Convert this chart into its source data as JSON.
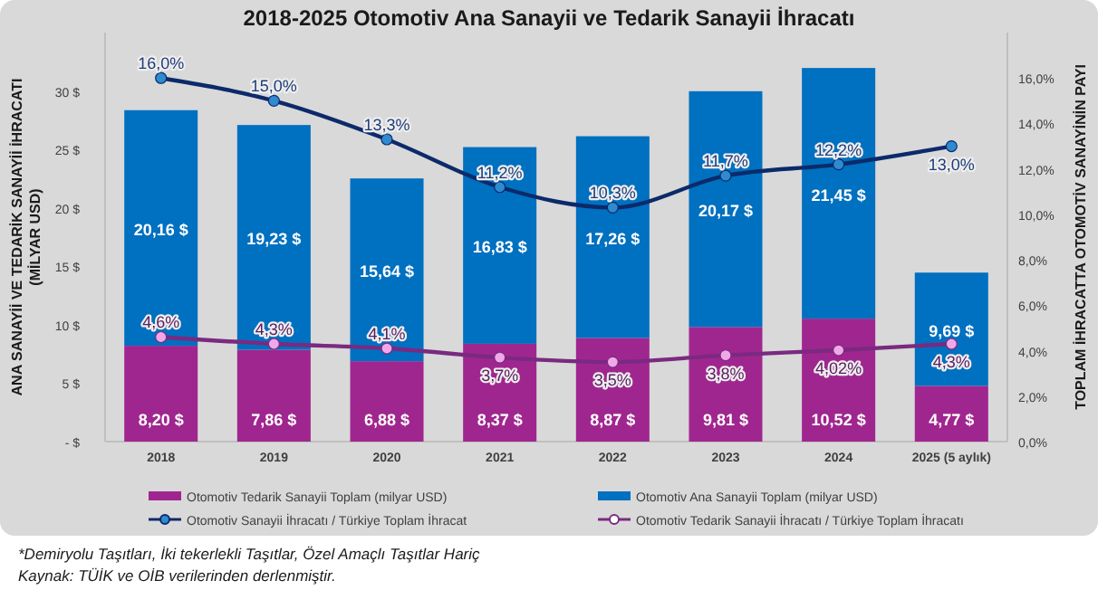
{
  "chart_data": {
    "type": "bar",
    "title": "2018-2025 Otomotiv Ana Sanayii ve Tedarik Sanayii İhracatı",
    "ylabel": "ANA SANAYİİ VE TEDARİK SANAYİİ İHRACATI\n(MİLYAR USD)",
    "y2label": "TOPLAM İHRACATTA OTOMOTİV SANAYİNİN PAYI",
    "categories": [
      "2018",
      "2019",
      "2020",
      "2021",
      "2022",
      "2023",
      "2024",
      "2025 (5 aylık)"
    ],
    "stacked": true,
    "series": [
      {
        "name": "Otomotiv Tedarik Sanayii Toplam (milyar USD)",
        "color": "#a0268f",
        "values": [
          8.2,
          7.86,
          6.88,
          8.37,
          8.87,
          9.81,
          10.52,
          4.77
        ],
        "value_labels": [
          "8,20 $",
          "7,86 $",
          "6,88 $",
          "8,37 $",
          "8,87 $",
          "9,81 $",
          "10,52 $",
          "4,77 $"
        ]
      },
      {
        "name": "Otomotiv Ana Sanayii Toplam (milyar USD)",
        "color": "#0070c0",
        "values": [
          20.16,
          19.23,
          15.64,
          16.83,
          17.26,
          20.17,
          21.45,
          9.69
        ],
        "value_labels": [
          "20,16 $",
          "19,23 $",
          "15,64 $",
          "16,83 $",
          "17,26 $",
          "20,17 $",
          "21,45 $",
          "9,69 $"
        ]
      },
      {
        "name": "Otomotiv Sanayii İhracatı / Türkiye Toplam İhracat",
        "type": "line",
        "axis": "y2",
        "color": "#0c2a6a",
        "marker": "circle",
        "values": [
          16.0,
          15.0,
          13.3,
          11.2,
          10.3,
          11.7,
          12.2,
          13.0
        ],
        "value_labels": [
          "16,0%",
          "15,0%",
          "13,3%",
          "11,2%",
          "10,3%",
          "11,7%",
          "12,2%",
          "13,0%"
        ]
      },
      {
        "name": "Otomotiv Tedarik Sanayii İhracatı / Türkiye Toplam İhracatı",
        "type": "line",
        "axis": "y2",
        "color": "#7a2a80",
        "marker": "circle",
        "values": [
          4.6,
          4.3,
          4.1,
          3.7,
          3.5,
          3.8,
          4.02,
          4.3
        ],
        "value_labels": [
          "4,6%",
          "4,3%",
          "4,1%",
          "3,7%",
          "3,5%",
          "3,8%",
          "4,02%",
          "4,3%"
        ]
      }
    ],
    "ylim": [
      0,
      35
    ],
    "yticks": [
      {
        "value": 0,
        "label": "- $"
      },
      {
        "value": 5,
        "label": "5 $"
      },
      {
        "value": 10,
        "label": "10 $"
      },
      {
        "value": 15,
        "label": "15 $"
      },
      {
        "value": 20,
        "label": "20 $"
      },
      {
        "value": 25,
        "label": "25 $"
      },
      {
        "value": 30,
        "label": "30 $"
      }
    ],
    "y2lim": [
      0,
      18
    ],
    "y2ticks": [
      {
        "value": 0,
        "label": "0,0%"
      },
      {
        "value": 2,
        "label": "2,0%"
      },
      {
        "value": 4,
        "label": "4,0%"
      },
      {
        "value": 6,
        "label": "6,0%"
      },
      {
        "value": 8,
        "label": "8,0%"
      },
      {
        "value": 10,
        "label": "10,0%"
      },
      {
        "value": 12,
        "label": "12,0%"
      },
      {
        "value": 14,
        "label": "14,0%"
      },
      {
        "value": 16,
        "label": "16,0%"
      }
    ],
    "grid": false,
    "legend": "bottom",
    "annotations": [
      "*Demiryolu Taşıtları, İki tekerlekli Taşıtlar, Özel Amaçlı Taşıtlar Hariç",
      "Kaynak: TÜİK ve OİB verilerinden derlenmiştir."
    ]
  }
}
